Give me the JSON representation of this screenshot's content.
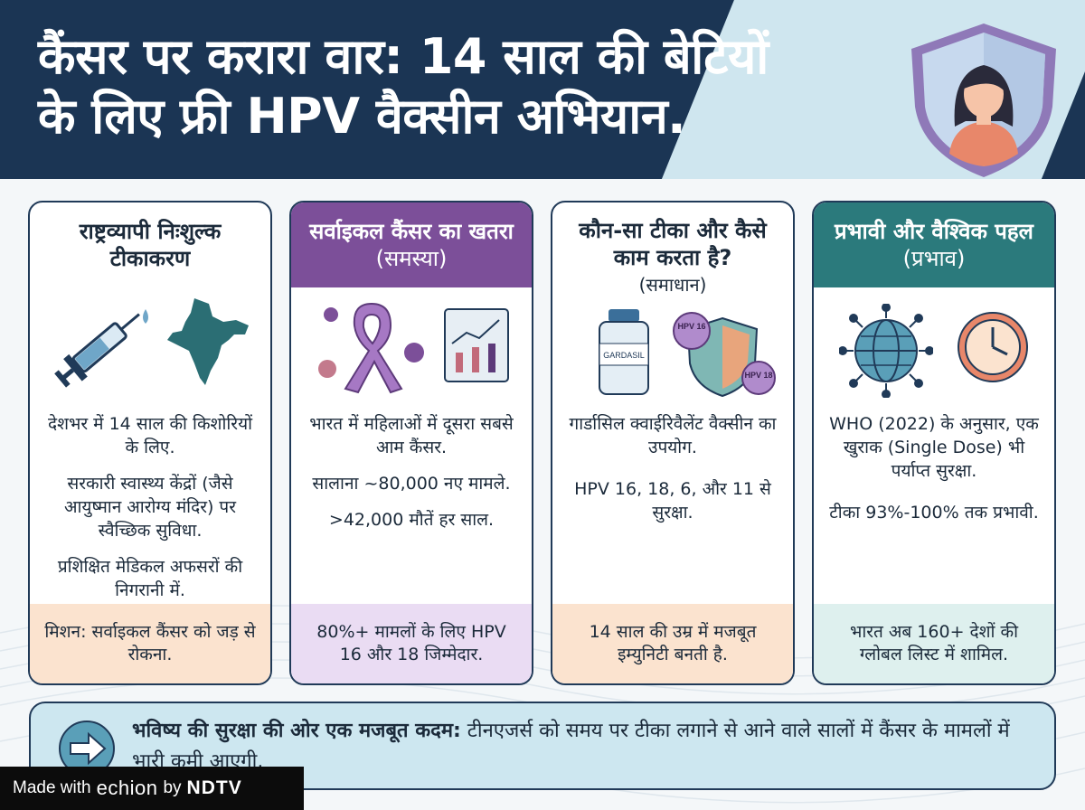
{
  "header": {
    "title_line1": "कैंसर पर करारा वार: 14 साल की बेटियों",
    "title_line2": "के लिए फ्री HPV वैक्सीन अभियान."
  },
  "cards": [
    {
      "heading": "राष्ट्रव्यापी निःशुल्क टीकाकरण",
      "subheading": "",
      "points": [
        "देशभर में 14 साल की किशोरियों के लिए.",
        "सरकारी स्वास्थ्य केंद्रों (जैसे आयुष्मान आरोग्य मंदिर) पर स्वैच्छिक सुविधा.",
        "प्रशिक्षित मेडिकल अफसरों की निगरानी में."
      ],
      "footer": "मिशन: सर्वाइकल कैंसर को जड़ से रोकना."
    },
    {
      "heading": "सर्वाइकल कैंसर का खतरा",
      "subheading": "(समस्या)",
      "points": [
        "भारत में महिलाओं में दूसरा सबसे आम कैंसर.",
        "सालाना ~80,000 नए मामले.",
        ">42,000 मौतें हर साल."
      ],
      "footer": "80%+ मामलों के लिए HPV 16 और 18 जिम्मेदार."
    },
    {
      "heading": "कौन-सा टीका और कैसे काम करता है?",
      "subheading": "(समाधान)",
      "vial_label": "GARDASIL",
      "strain_labels": [
        "HPV 16",
        "HPV 18"
      ],
      "points": [
        "गार्डासिल क्वाईरिवैलेंट वैक्सीन का उपयोग.",
        "HPV 16, 18, 6, और 11 से सुरक्षा."
      ],
      "footer": "14 साल की उम्र में मजबूत इम्युनिटी बनती है."
    },
    {
      "heading": "प्रभावी और वैश्विक पहल",
      "subheading": "(प्रभाव)",
      "points": [
        "WHO (2022) के अनुसार, एक खुराक (Single Dose) भी पर्याप्त सुरक्षा.",
        "टीका 93%-100% तक प्रभावी."
      ],
      "footer": "भारत अब 160+ देशों की ग्लोबल लिस्ट में शामिल."
    }
  ],
  "banner": {
    "bold": "भविष्य की सुरक्षा की ओर एक मजबूत कदम:",
    "text": " टीनएजर्स को समय पर टीका लगाने से आने वाले सालों में कैंसर के मामलों में भारी कमी आएगी."
  },
  "watermark": {
    "made_with": "Made with",
    "brand": "echion",
    "by": "by",
    "publisher": "NDTV"
  },
  "colors": {
    "navy": "#1b3554",
    "purple": "#7c4f99",
    "teal": "#2b7a7c",
    "peach": "#fbe3cf",
    "lilac": "#eadcf3",
    "banner": "#cde7f0"
  }
}
